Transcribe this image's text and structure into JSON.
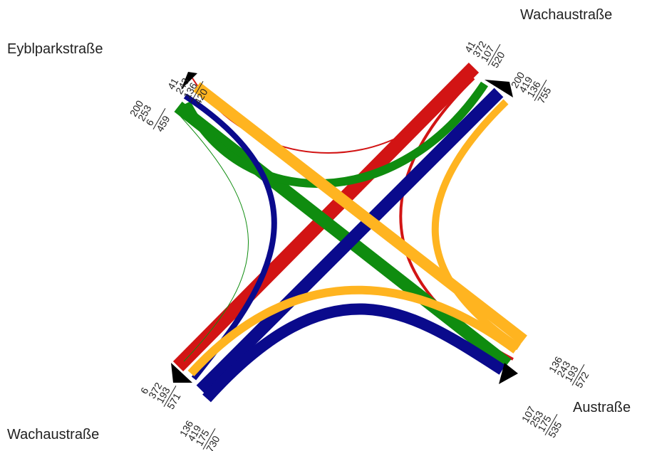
{
  "colors": {
    "red": "#d21414",
    "green": "#0f8c0f",
    "blue": "#0a0a8c",
    "orange": "#ffb420"
  },
  "streets": {
    "nw": "Eyblparkstraße",
    "ne": "Wachaustraße",
    "se": "Austraße",
    "sw": "Wachaustraße"
  },
  "counts": {
    "nw_in": {
      "values": [
        "41",
        "243",
        "136"
      ],
      "total": "420"
    },
    "nw_out": {
      "values": [
        "200",
        "253",
        "6"
      ],
      "total": "459"
    },
    "ne_in": {
      "values": [
        "41",
        "372",
        "107"
      ],
      "total": "520"
    },
    "ne_out": {
      "values": [
        "200",
        "419",
        "136"
      ],
      "total": "755"
    },
    "se_in": {
      "values": [
        "136",
        "243",
        "193"
      ],
      "total": "572"
    },
    "se_out": {
      "values": [
        "107",
        "253",
        "175"
      ],
      "total": "535"
    },
    "sw_in": {
      "values": [
        "6",
        "372",
        "193"
      ],
      "total": "571"
    },
    "sw_out": {
      "values": [
        "136",
        "419",
        "175"
      ],
      "total": "730"
    }
  }
}
